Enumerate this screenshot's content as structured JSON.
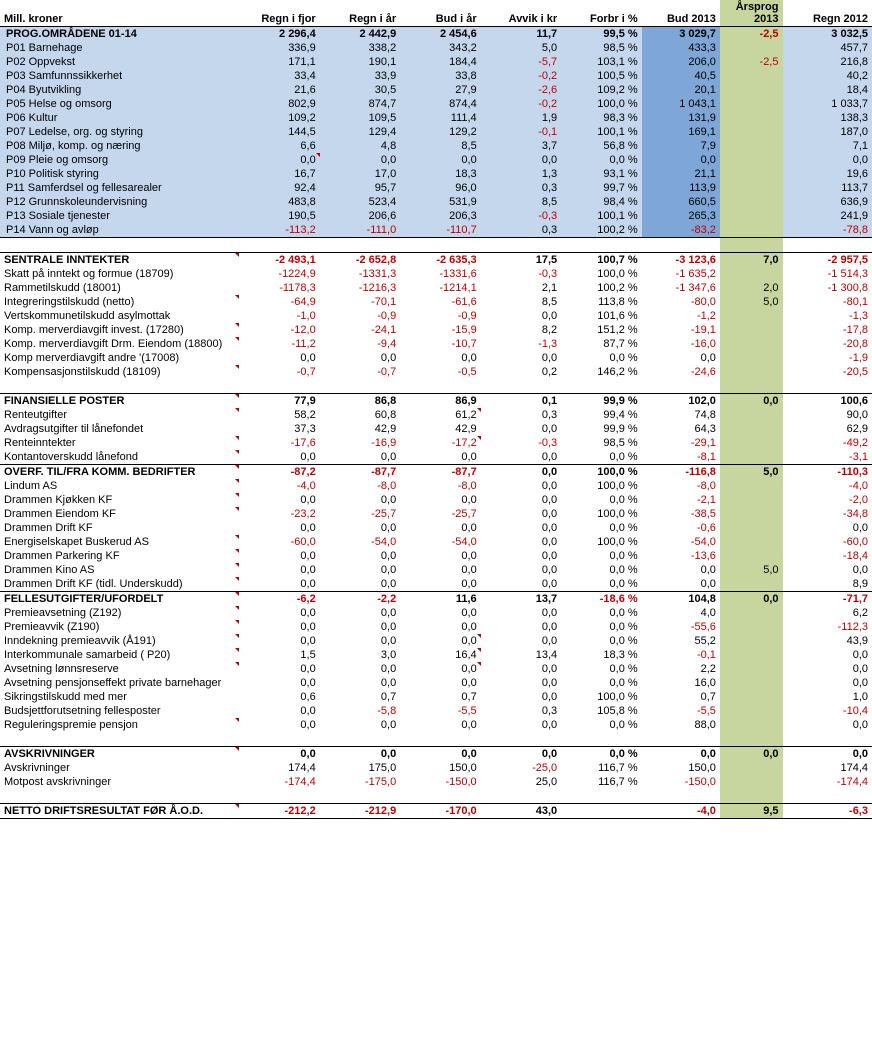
{
  "columns": {
    "label": "Mill. kroner",
    "c1": "Regn i fjor",
    "c2": "Regn i år",
    "c3": "Bud i   år",
    "c4": "Avvik i kr",
    "c5": "Forbr i %",
    "c6": "Bud 2013",
    "c7_top": "Årsprog",
    "c7_bot": "2013",
    "c8": "Regn 2012"
  },
  "progheader": {
    "label": "PROG.OMRÅDENE 01-14",
    "c1": "2 296,4",
    "c2": "2 442,9",
    "c3": "2 454,6",
    "c4": "11,7",
    "c5": "99,5 %",
    "c6": "3 029,7",
    "c7": "-2,5",
    "c8": "3 032,5"
  },
  "prog": [
    {
      "label": "P01 Barnehage",
      "c1": "336,9",
      "c2": "338,2",
      "c3": "343,2",
      "c4": "5,0",
      "c5": "98,5 %",
      "c6": "433,3",
      "c7": "",
      "c8": "457,7"
    },
    {
      "label": "P02 Oppvekst",
      "c1": "171,1",
      "c2": "190,1",
      "c3": "184,4",
      "c4": "-5,7",
      "c5": "103,1 %",
      "c6": "206,0",
      "c7": "-2,5",
      "c8": "216,8"
    },
    {
      "label": "P03 Samfunnssikkerhet",
      "c1": "33,4",
      "c2": "33,9",
      "c3": "33,8",
      "c4": "-0,2",
      "c5": "100,5 %",
      "c6": "40,5",
      "c7": "",
      "c8": "40,2"
    },
    {
      "label": "P04 Byutvikling",
      "c1": "21,6",
      "c2": "30,5",
      "c3": "27,9",
      "c4": "-2,6",
      "c5": "109,2 %",
      "c6": "20,1",
      "c7": "",
      "c8": "18,4"
    },
    {
      "label": "P05 Helse og omsorg",
      "c1": "802,9",
      "c2": "874,7",
      "c3": "874,4",
      "c4": "-0,2",
      "c5": "100,0 %",
      "c6": "1 043,1",
      "c7": "",
      "c8": "1 033,7"
    },
    {
      "label": "P06 Kultur",
      "c1": "109,2",
      "c2": "109,5",
      "c3": "111,4",
      "c4": "1,9",
      "c5": "98,3 %",
      "c6": "131,9",
      "c7": "",
      "c8": "138,3"
    },
    {
      "label": "P07 Ledelse, org. og styring",
      "c1": "144,5",
      "c2": "129,4",
      "c3": "129,2",
      "c4": "-0,1",
      "c5": "100,1 %",
      "c6": "169,1",
      "c7": "",
      "c8": "187,0"
    },
    {
      "label": "P08 Miljø, komp. og næring",
      "c1": "6,6",
      "c2": "4,8",
      "c3": "8,5",
      "c4": "3,7",
      "c5": "56,8 %",
      "c6": "7,9",
      "c7": "",
      "c8": "7,1"
    },
    {
      "label": "P09 Pleie og omsorg",
      "c1": "0,0",
      "c2": "0,0",
      "c3": "0,0",
      "c4": "0,0",
      "c5": "0,0 %",
      "c6": "0,0",
      "c7": "",
      "c8": "0,0",
      "tri": "c1"
    },
    {
      "label": "P10 Politisk styring",
      "c1": "16,7",
      "c2": "17,0",
      "c3": "18,3",
      "c4": "1,3",
      "c5": "93,1 %",
      "c6": "21,1",
      "c7": "",
      "c8": "19,6"
    },
    {
      "label": "P11 Samferdsel og fellesarealer",
      "c1": "92,4",
      "c2": "95,7",
      "c3": "96,0",
      "c4": "0,3",
      "c5": "99,7 %",
      "c6": "113,9",
      "c7": "",
      "c8": "113,7"
    },
    {
      "label": "P12 Grunnskoleundervisning",
      "c1": "483,8",
      "c2": "523,4",
      "c3": "531,9",
      "c4": "8,5",
      "c5": "98,4 %",
      "c6": "660,5",
      "c7": "",
      "c8": "636,9"
    },
    {
      "label": "P13 Sosiale tjenester",
      "c1": "190,5",
      "c2": "206,6",
      "c3": "206,3",
      "c4": "-0,3",
      "c5": "100,1 %",
      "c6": "265,3",
      "c7": "",
      "c8": "241,9"
    },
    {
      "label": "P14 Vann og avløp",
      "c1": "-113,2",
      "c2": "-111,0",
      "c3": "-110,7",
      "c4": "0,3",
      "c5": "100,2 %",
      "c6": "-83,2",
      "c7": "",
      "c8": "-78,8",
      "foot": true
    }
  ],
  "sections": [
    {
      "header": {
        "label": "SENTRALE INNTEKTER",
        "c1": "-2 493,1",
        "c2": "-2 652,8",
        "c3": "-2 635,3",
        "c4": "17,5",
        "c5": "100,7 %",
        "c6": "-3 123,6",
        "c7": "7,0",
        "c8": "-2 957,5",
        "tri": "label"
      },
      "rows": [
        {
          "label": "Skatt på inntekt og formue (18709)",
          "c1": "-1224,9",
          "c2": "-1331,3",
          "c3": "-1331,6",
          "c4": "-0,3",
          "c5": "100,0 %",
          "c6": "-1 635,2",
          "c7": "",
          "c8": "-1 514,3"
        },
        {
          "label": "Rammetilskudd (18001)",
          "c1": "-1178,3",
          "c2": "-1216,3",
          "c3": "-1214,1",
          "c4": "2,1",
          "c5": "100,2 %",
          "c6": "-1 347,6",
          "c7": "2,0",
          "c8": "-1 300,8"
        },
        {
          "label": "Integreringstilskudd (netto)",
          "c1": "-64,9",
          "c2": "-70,1",
          "c3": "-61,6",
          "c4": "8,5",
          "c5": "113,8 %",
          "c6": "-80,0",
          "c7": "5,0",
          "c8": "-80,1",
          "tri": "label"
        },
        {
          "label": "Vertskommunetilskudd asylmottak",
          "c1": "-1,0",
          "c2": "-0,9",
          "c3": "-0,9",
          "c4": "0,0",
          "c5": "101,6 %",
          "c6": "-1,2",
          "c7": "",
          "c8": "-1,3"
        },
        {
          "label": "Komp. merverdiavgift invest. (17280)",
          "c1": "-12,0",
          "c2": "-24,1",
          "c3": "-15,9",
          "c4": "8,2",
          "c5": "151,2 %",
          "c6": "-19,1",
          "c7": "",
          "c8": "-17,8",
          "tri": "label"
        },
        {
          "label": "Komp. merverdiavgift Drm. Eiendom (18800)",
          "c1": "-11,2",
          "c2": "-9,4",
          "c3": "-10,7",
          "c4": "-1,3",
          "c5": "87,7 %",
          "c6": "-16,0",
          "c7": "",
          "c8": "-20,8",
          "tri": "label"
        },
        {
          "label": "Komp merverdiavgift andre '(17008)",
          "c1": "0,0",
          "c2": "0,0",
          "c3": "0,0",
          "c4": "0,0",
          "c5": "0,0 %",
          "c6": "0,0",
          "c7": "",
          "c8": "-1,9"
        },
        {
          "label": "Kompensasjonstilskudd (18109)",
          "c1": "-0,7",
          "c2": "-0,7",
          "c3": "-0,5",
          "c4": "0,2",
          "c5": "146,2 %",
          "c6": "-24,6",
          "c7": "",
          "c8": "-20,5",
          "tri": "label"
        },
        {
          "blank": true
        }
      ]
    },
    {
      "header": {
        "label": "FINANSIELLE POSTER",
        "c1": "77,9",
        "c2": "86,8",
        "c3": "86,9",
        "c4": "0,1",
        "c5": "99,9 %",
        "c6": "102,0",
        "c7": "0,0",
        "c8": "100,6",
        "tri": "label"
      },
      "rows": [
        {
          "label": "Renteutgifter",
          "c1": "58,2",
          "c2": "60,8",
          "c3": "61,2",
          "c4": "0,3",
          "c5": "99,4 %",
          "c6": "74,8",
          "c7": "",
          "c8": "90,0",
          "tri": "label,c3"
        },
        {
          "label": "Avdragsutgifter til lånefondet",
          "c1": "37,3",
          "c2": "42,9",
          "c3": "42,9",
          "c4": "0,0",
          "c5": "99,9 %",
          "c6": "64,3",
          "c7": "",
          "c8": "62,9"
        },
        {
          "label": "Renteinntekter",
          "c1": "-17,6",
          "c2": "-16,9",
          "c3": "-17,2",
          "c4": "-0,3",
          "c5": "98,5 %",
          "c6": "-29,1",
          "c7": "",
          "c8": "-49,2",
          "tri": "label,c3"
        },
        {
          "label": "Kontantoverskudd lånefond",
          "c1": "0,0",
          "c2": "0,0",
          "c3": "0,0",
          "c4": "0,0",
          "c5": "0,0 %",
          "c6": "-8,1",
          "c7": "",
          "c8": "-3,1",
          "tri": "label"
        }
      ]
    },
    {
      "header": {
        "label": "OVERF. TIL/FRA KOMM. BEDRIFTER",
        "c1": "-87,2",
        "c2": "-87,7",
        "c3": "-87,7",
        "c4": "0,0",
        "c5": "100,0 %",
        "c6": "-116,8",
        "c7": "5,0",
        "c8": "-110,3",
        "tri": "label"
      },
      "rows": [
        {
          "label": "Lindum AS",
          "c1": "-4,0",
          "c2": "-8,0",
          "c3": "-8,0",
          "c4": "0,0",
          "c5": "100,0 %",
          "c6": "-8,0",
          "c7": "",
          "c8": "-4,0",
          "tri": "label"
        },
        {
          "label": "Drammen Kjøkken KF",
          "c1": "0,0",
          "c2": "0,0",
          "c3": "0,0",
          "c4": "0,0",
          "c5": "0,0 %",
          "c6": "-2,1",
          "c7": "",
          "c8": "-2,0",
          "tri": "label"
        },
        {
          "label": "Drammen Eiendom KF",
          "c1": "-23,2",
          "c2": "-25,7",
          "c3": "-25,7",
          "c4": "0,0",
          "c5": "100,0 %",
          "c6": "-38,5",
          "c7": "",
          "c8": "-34,8",
          "tri": "label"
        },
        {
          "label": "Drammen Drift KF",
          "c1": "0,0",
          "c2": "0,0",
          "c3": "0,0",
          "c4": "0,0",
          "c5": "0,0 %",
          "c6": "-0,6",
          "c7": "",
          "c8": "0,0"
        },
        {
          "label": "Energiselskapet Buskerud AS",
          "c1": "-60,0",
          "c2": "-54,0",
          "c3": "-54,0",
          "c4": "0,0",
          "c5": "100,0 %",
          "c6": "-54,0",
          "c7": "",
          "c8": "-60,0",
          "tri": "label"
        },
        {
          "label": "Drammen Parkering KF",
          "c1": "0,0",
          "c2": "0,0",
          "c3": "0,0",
          "c4": "0,0",
          "c5": "0,0 %",
          "c6": "-13,6",
          "c7": "",
          "c8": "-18,4",
          "tri": "label"
        },
        {
          "label": "Drammen Kino AS",
          "c1": "0,0",
          "c2": "0,0",
          "c3": "0,0",
          "c4": "0,0",
          "c5": "0,0 %",
          "c6": "0,0",
          "c7": "5,0",
          "c8": "0,0",
          "tri": "label"
        },
        {
          "label": "Drammen Drift KF (tidl. Underskudd)",
          "c1": "0,0",
          "c2": "0,0",
          "c3": "0,0",
          "c4": "0,0",
          "c5": "0,0 %",
          "c6": "0,0",
          "c7": "",
          "c8": "8,9",
          "tri": "label"
        }
      ]
    },
    {
      "header": {
        "label": "FELLESUTGIFTER/UFORDELT",
        "c1": "-6,2",
        "c2": "-2,2",
        "c3": "11,6",
        "c4": "13,7",
        "c5": "-18,6 %",
        "c6": "104,8",
        "c7": "0,0",
        "c8": "-71,7",
        "tri": "label"
      },
      "rows": [
        {
          "label": "Premieavsetning (Z192)",
          "c1": "0,0",
          "c2": "0,0",
          "c3": "0,0",
          "c4": "0,0",
          "c5": "0,0 %",
          "c6": "4,0",
          "c7": "",
          "c8": "6,2",
          "tri": "label"
        },
        {
          "label": "Premieavvik (Z190)",
          "c1": "0,0",
          "c2": "0,0",
          "c3": "0,0",
          "c4": "0,0",
          "c5": "0,0 %",
          "c6": "-55,6",
          "c7": "",
          "c8": "-112,3",
          "tri": "label"
        },
        {
          "label": "Inndekning premieavvik (Å191)",
          "c1": "0,0",
          "c2": "0,0",
          "c3": "0,0",
          "c4": "0,0",
          "c5": "0,0 %",
          "c6": "55,2",
          "c7": "",
          "c8": "43,9",
          "tri": "label,c3"
        },
        {
          "label": "Interkommunale samarbeid ( P20)",
          "c1": "1,5",
          "c2": "3,0",
          "c3": "16,4",
          "c4": "13,4",
          "c5": "18,3 %",
          "c6": "-0,1",
          "c7": "",
          "c8": "0,0",
          "tri": "label,c3"
        },
        {
          "label": "Avsetning lønnsreserve",
          "c1": "0,0",
          "c2": "0,0",
          "c3": "0,0",
          "c4": "0,0",
          "c5": "0,0 %",
          "c6": "2,2",
          "c7": "",
          "c8": "0,0",
          "tri": "label,c3"
        },
        {
          "label": "Avsetning pensjonseffekt private barnehager",
          "c1": "0,0",
          "c2": "0,0",
          "c3": "0,0",
          "c4": "0,0",
          "c5": "0,0 %",
          "c6": "16,0",
          "c7": "",
          "c8": "0,0"
        },
        {
          "label": "Sikringstilskudd med mer",
          "c1": "0,6",
          "c2": "0,7",
          "c3": "0,7",
          "c4": "0,0",
          "c5": "100,0 %",
          "c6": "0,7",
          "c7": "",
          "c8": "1,0"
        },
        {
          "label": "Budsjettforutsetning fellesposter",
          "c1": "0,0",
          "c2": "-5,8",
          "c3": "-5,5",
          "c4": "0,3",
          "c5": "105,8 %",
          "c6": "-5,5",
          "c7": "",
          "c8": "-10,4"
        },
        {
          "label": "Reguleringspremie pensjon",
          "c1": "0,0",
          "c2": "0,0",
          "c3": "0,0",
          "c4": "0,0",
          "c5": "0,0 %",
          "c6": "88,0",
          "c7": "",
          "c8": "0,0",
          "tri": "label"
        },
        {
          "blank": true
        }
      ]
    },
    {
      "header": {
        "label": "AVSKRIVNINGER",
        "c1": "0,0",
        "c2": "0,0",
        "c3": "0,0",
        "c4": "0,0",
        "c5": "0,0 %",
        "c6": "0,0",
        "c7": "0,0",
        "c8": "0,0",
        "tri": "label"
      },
      "rows": [
        {
          "label": "Avskrivninger",
          "c1": "174,4",
          "c2": "175,0",
          "c3": "150,0",
          "c4": "-25,0",
          "c5": "116,7 %",
          "c6": "150,0",
          "c7": "",
          "c8": "174,4"
        },
        {
          "label": "Motpost avskrivninger",
          "c1": "-174,4",
          "c2": "-175,0",
          "c3": "-150,0",
          "c4": "25,0",
          "c5": "116,7 %",
          "c6": "-150,0",
          "c7": "",
          "c8": "-174,4"
        }
      ]
    }
  ],
  "netto": {
    "label": "NETTO DRIFTSRESULTAT FØR Å.O.D.",
    "c1": "-212,2",
    "c2": "-212,9",
    "c3": "-170,0",
    "c4": "43,0",
    "c5": "",
    "c6": "-4,0",
    "c7": "9,5",
    "c8": "-6,3",
    "tri": "label"
  }
}
